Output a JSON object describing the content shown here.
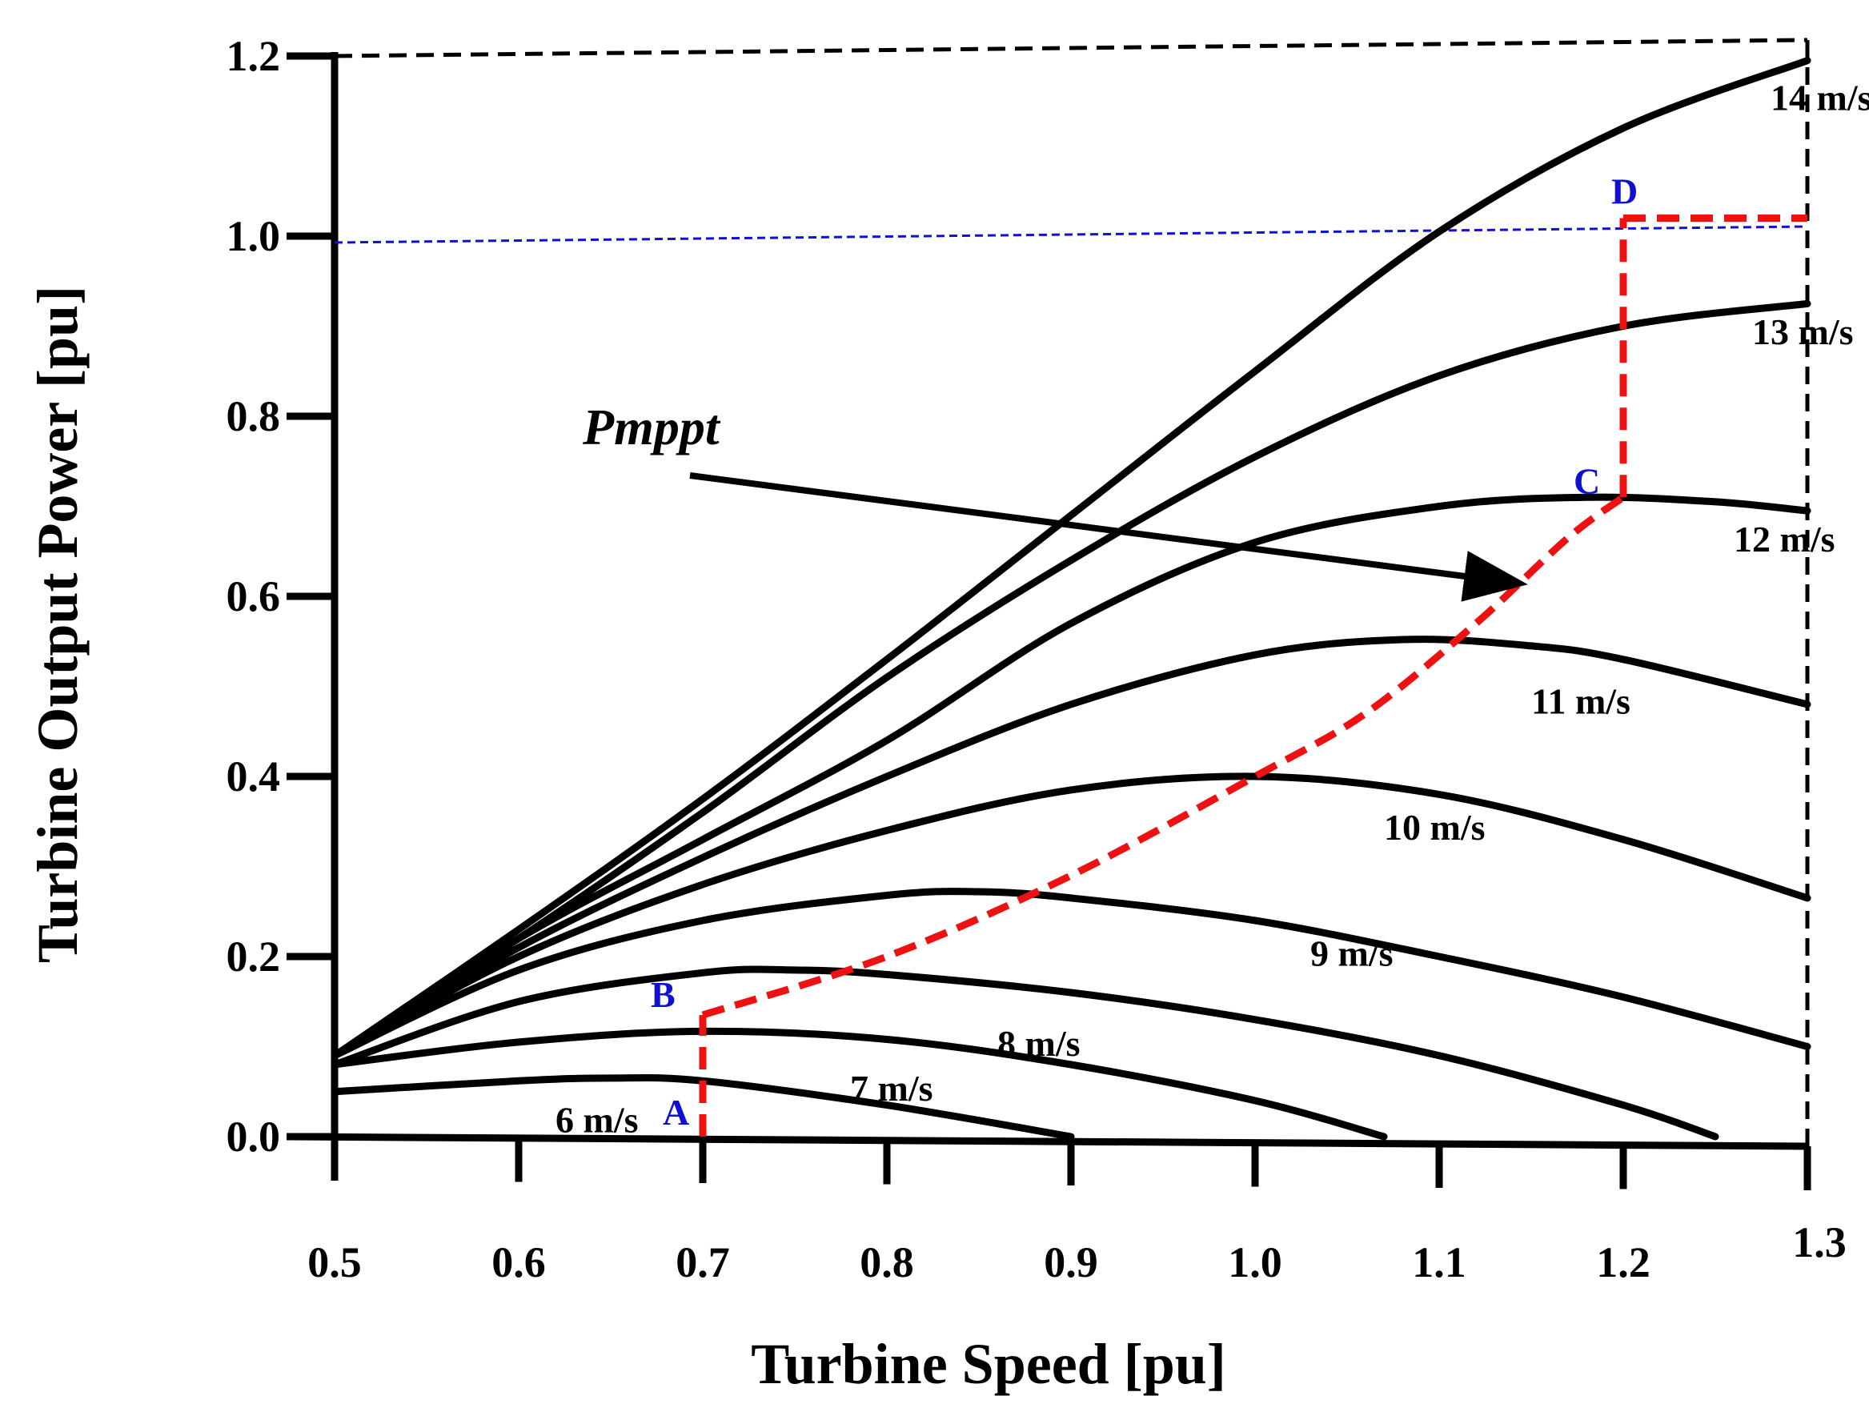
{
  "chart_data": {
    "type": "line",
    "title": "",
    "xlabel": "Turbine Speed [pu]",
    "ylabel": "Turbine Output  Power [pu]",
    "xlim": [
      0.5,
      1.3
    ],
    "ylim": [
      0.0,
      1.2
    ],
    "x_ticks": [
      "0.5",
      "0.6",
      "0.7",
      "0.8",
      "0.9",
      "1.0",
      "1.1",
      "1.2",
      "1.3"
    ],
    "y_ticks": [
      "0.0",
      "0.2",
      "0.4",
      "0.6",
      "0.8",
      "1.0",
      "1.2"
    ],
    "grid": false,
    "legend": "none",
    "series": [
      {
        "name": "6 m/s",
        "color": "#000000",
        "x": [
          0.5,
          0.6,
          0.65,
          0.7,
          0.8,
          0.9
        ],
        "y": [
          0.05,
          0.062,
          0.065,
          0.062,
          0.035,
          0.0
        ]
      },
      {
        "name": "7 m/s",
        "color": "#000000",
        "x": [
          0.5,
          0.6,
          0.7,
          0.8,
          0.9,
          1.0,
          1.07
        ],
        "y": [
          0.08,
          0.105,
          0.117,
          0.108,
          0.08,
          0.04,
          0.0
        ]
      },
      {
        "name": "8 m/s",
        "color": "#000000",
        "x": [
          0.5,
          0.6,
          0.7,
          0.75,
          0.8,
          0.9,
          1.0,
          1.1,
          1.2,
          1.25
        ],
        "y": [
          0.08,
          0.15,
          0.182,
          0.185,
          0.18,
          0.16,
          0.13,
          0.09,
          0.035,
          0.0
        ]
      },
      {
        "name": "9 m/s",
        "color": "#000000",
        "x": [
          0.5,
          0.6,
          0.7,
          0.8,
          0.85,
          0.9,
          1.0,
          1.1,
          1.2,
          1.3
        ],
        "y": [
          0.09,
          0.185,
          0.24,
          0.268,
          0.272,
          0.265,
          0.24,
          0.2,
          0.155,
          0.1
        ]
      },
      {
        "name": "10 m/s",
        "color": "#000000",
        "x": [
          0.5,
          0.6,
          0.7,
          0.8,
          0.9,
          1.0,
          1.1,
          1.2,
          1.3
        ],
        "y": [
          0.09,
          0.2,
          0.28,
          0.34,
          0.385,
          0.4,
          0.38,
          0.33,
          0.265
        ]
      },
      {
        "name": "11 m/s",
        "color": "#000000",
        "x": [
          0.5,
          0.6,
          0.7,
          0.8,
          0.9,
          1.0,
          1.08,
          1.15,
          1.2,
          1.3
        ],
        "y": [
          0.09,
          0.21,
          0.31,
          0.4,
          0.48,
          0.535,
          0.552,
          0.545,
          0.53,
          0.48
        ]
      },
      {
        "name": "12 m/s",
        "color": "#000000",
        "x": [
          0.5,
          0.6,
          0.7,
          0.8,
          0.9,
          1.0,
          1.1,
          1.18,
          1.25,
          1.3
        ],
        "y": [
          0.09,
          0.22,
          0.33,
          0.44,
          0.57,
          0.66,
          0.7,
          0.71,
          0.705,
          0.695
        ]
      },
      {
        "name": "13 m/s",
        "color": "#000000",
        "x": [
          0.5,
          0.6,
          0.7,
          0.8,
          0.9,
          1.0,
          1.1,
          1.2,
          1.3
        ],
        "y": [
          0.09,
          0.22,
          0.36,
          0.51,
          0.64,
          0.755,
          0.845,
          0.9,
          0.925
        ]
      },
      {
        "name": "14 m/s",
        "color": "#000000",
        "x": [
          0.5,
          0.6,
          0.7,
          0.8,
          0.9,
          1.0,
          1.1,
          1.2,
          1.3
        ],
        "y": [
          0.09,
          0.23,
          0.375,
          0.53,
          0.69,
          0.85,
          1.005,
          1.12,
          1.195
        ]
      }
    ],
    "mppt_path": {
      "name": "Pmppt",
      "color": "#ee1111",
      "x": [
        0.7,
        0.7,
        0.8,
        0.9,
        1.0,
        1.06,
        1.12,
        1.17,
        1.2,
        1.2,
        1.3
      ],
      "y": [
        0.0,
        0.135,
        0.2,
        0.29,
        0.4,
        0.47,
        0.57,
        0.665,
        0.71,
        1.02,
        1.02
      ]
    },
    "rated_power_line": {
      "color": "#1010d0",
      "y": 1.0
    },
    "points": [
      {
        "label": "A",
        "x": 0.7,
        "y": 0.0
      },
      {
        "label": "B",
        "x": 0.7,
        "y": 0.135
      },
      {
        "label": "C",
        "x": 1.2,
        "y": 0.71
      },
      {
        "label": "D",
        "x": 1.2,
        "y": 1.02
      }
    ],
    "annotation": {
      "text": "Pmppt",
      "arrow_to_x": 1.15,
      "arrow_to_y": 0.615
    }
  }
}
